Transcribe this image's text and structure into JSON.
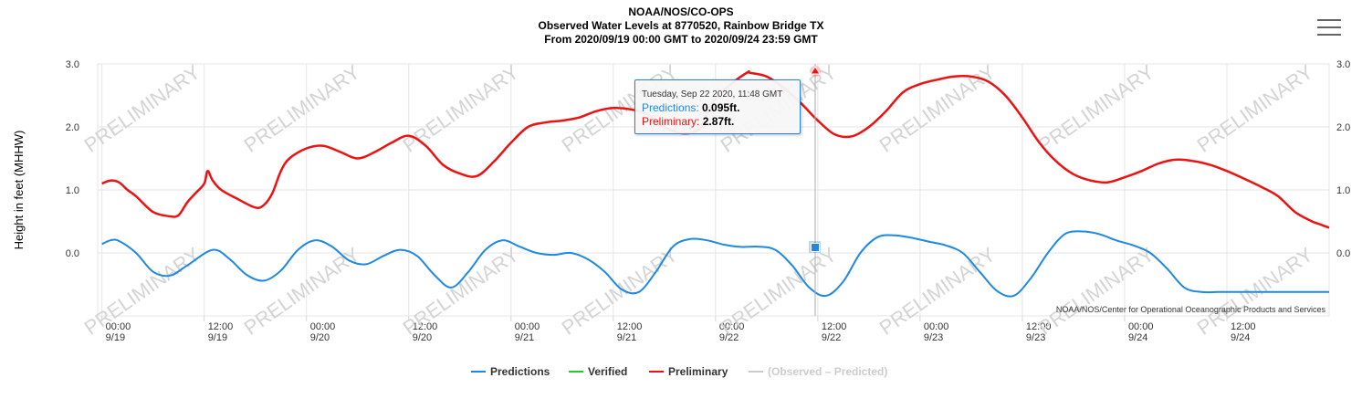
{
  "header": {
    "title": "NOAA/NOS/CO-OPS",
    "subtitle": "Observed Water Levels at 8770520, Rainbow Bridge TX",
    "range": "From 2020/09/19 00:00 GMT to 2020/09/24 23:59 GMT"
  },
  "credit": "NOAA/NOS/Center for Operational Oceanographic Products and Services",
  "watermark": "PRELIMINARY",
  "tooltip": {
    "date": "Tuesday, Sep 22 2020, 11:48 GMT",
    "predictions_label": "Predictions:",
    "predictions_value": "0.095ft.",
    "preliminary_label": "Preliminary:",
    "preliminary_value": "2.87ft."
  },
  "menu": {
    "icon": "hamburger-menu-icon"
  },
  "chart_data": {
    "type": "line",
    "title": "NOAA/NOS/CO-OPS",
    "ylabel": "Height in feet (MHHW)",
    "ylim": [
      -1.0,
      3.0
    ],
    "yticks": [
      "3.0",
      "2.0",
      "1.0",
      "0.0"
    ],
    "xlim_hours": [
      -0.5,
      144
    ],
    "xticks": [
      {
        "time": "00:00",
        "date": "9/19"
      },
      {
        "time": "12:00",
        "date": "9/19"
      },
      {
        "time": "00:00",
        "date": "9/20"
      },
      {
        "time": "12:00",
        "date": "9/20"
      },
      {
        "time": "00:00",
        "date": "9/21"
      },
      {
        "time": "12:00",
        "date": "9/21"
      },
      {
        "time": "00:00",
        "date": "9/22"
      },
      {
        "time": "12:00",
        "date": "9/22"
      },
      {
        "time": "00:00",
        "date": "9/23"
      },
      {
        "time": "12:00",
        "date": "9/23"
      },
      {
        "time": "00:00",
        "date": "9/24"
      },
      {
        "time": "12:00",
        "date": "9/24"
      }
    ],
    "grid": true,
    "legend_position": "bottom-center",
    "series": [
      {
        "name": "Predictions",
        "color": "#1e88e5",
        "x": [
          0,
          1,
          2,
          4,
          6,
          8,
          10,
          13,
          15,
          17,
          19,
          21,
          23,
          25,
          27,
          29,
          31,
          33,
          35,
          37,
          39,
          41,
          43,
          45,
          47,
          49,
          51,
          53,
          55,
          57,
          59,
          61,
          63,
          65,
          67,
          69,
          71,
          73,
          75,
          77,
          79,
          81,
          83,
          85,
          87,
          89,
          91,
          93,
          95,
          97,
          99,
          101,
          103,
          105,
          107,
          109,
          111,
          113,
          115,
          117,
          119,
          121,
          123,
          125,
          127,
          129,
          131,
          133,
          135,
          137,
          139,
          141,
          143,
          144
        ],
        "y": [
          0.14,
          0.2,
          0.19,
          0.0,
          -0.3,
          -0.36,
          -0.2,
          0.05,
          -0.1,
          -0.35,
          -0.44,
          -0.28,
          0.05,
          0.2,
          0.1,
          -0.12,
          -0.18,
          -0.05,
          0.05,
          -0.05,
          -0.35,
          -0.55,
          -0.3,
          0.05,
          0.2,
          0.1,
          0.0,
          -0.03,
          0.0,
          -0.1,
          -0.3,
          -0.58,
          -0.62,
          -0.3,
          0.1,
          0.22,
          0.2,
          0.13,
          0.095,
          0.1,
          0.05,
          -0.2,
          -0.55,
          -0.68,
          -0.45,
          0.0,
          0.25,
          0.28,
          0.24,
          0.18,
          0.12,
          0.0,
          -0.3,
          -0.6,
          -0.68,
          -0.4,
          0.0,
          0.3,
          0.34,
          0.3,
          0.2,
          0.12,
          0.0,
          -0.25,
          -0.55,
          -0.62,
          -0.62,
          -0.62,
          -0.62,
          -0.62,
          -0.62,
          -0.62,
          -0.62,
          -0.62
        ]
      },
      {
        "name": "Verified",
        "color": "#22cc22",
        "x": [],
        "y": []
      },
      {
        "name": "Preliminary",
        "color": "#ee1111",
        "x": [
          0,
          1,
          2,
          3,
          4,
          6,
          8,
          9,
          10,
          11,
          12,
          12.4,
          13,
          14,
          16,
          18,
          19,
          20,
          21,
          22,
          24,
          26,
          28,
          30,
          32,
          34,
          36,
          38,
          40,
          42,
          44,
          46,
          48,
          50,
          52,
          54,
          56,
          58,
          60,
          62,
          64,
          66,
          68,
          70,
          71,
          72,
          74,
          75.8,
          76,
          78,
          80,
          82,
          84,
          86,
          88,
          90,
          92,
          94,
          96,
          98,
          100,
          102,
          104,
          106,
          108,
          110,
          112,
          114,
          116,
          118,
          120,
          122,
          124,
          126,
          128,
          130,
          132,
          134,
          136,
          138,
          140,
          142,
          143,
          144
        ],
        "y": [
          1.1,
          1.15,
          1.12,
          1.0,
          0.9,
          0.65,
          0.58,
          0.6,
          0.8,
          0.95,
          1.1,
          1.3,
          1.15,
          1.0,
          0.85,
          0.72,
          0.76,
          0.95,
          1.3,
          1.5,
          1.66,
          1.7,
          1.6,
          1.5,
          1.6,
          1.75,
          1.86,
          1.7,
          1.4,
          1.26,
          1.22,
          1.45,
          1.75,
          2.0,
          2.07,
          2.1,
          2.15,
          2.25,
          2.3,
          2.28,
          2.2,
          2.0,
          1.9,
          1.95,
          2.2,
          2.45,
          2.7,
          2.87,
          2.86,
          2.8,
          2.62,
          2.38,
          2.1,
          1.88,
          1.85,
          2.0,
          2.25,
          2.55,
          2.68,
          2.75,
          2.8,
          2.8,
          2.72,
          2.5,
          2.15,
          1.75,
          1.45,
          1.25,
          1.15,
          1.12,
          1.2,
          1.3,
          1.42,
          1.48,
          1.46,
          1.4,
          1.3,
          1.18,
          1.05,
          0.9,
          0.65,
          0.5,
          0.45,
          0.4
        ]
      },
      {
        "name": "(Observed – Predicted)",
        "color": "#cccccc",
        "x": [],
        "y": []
      }
    ]
  }
}
